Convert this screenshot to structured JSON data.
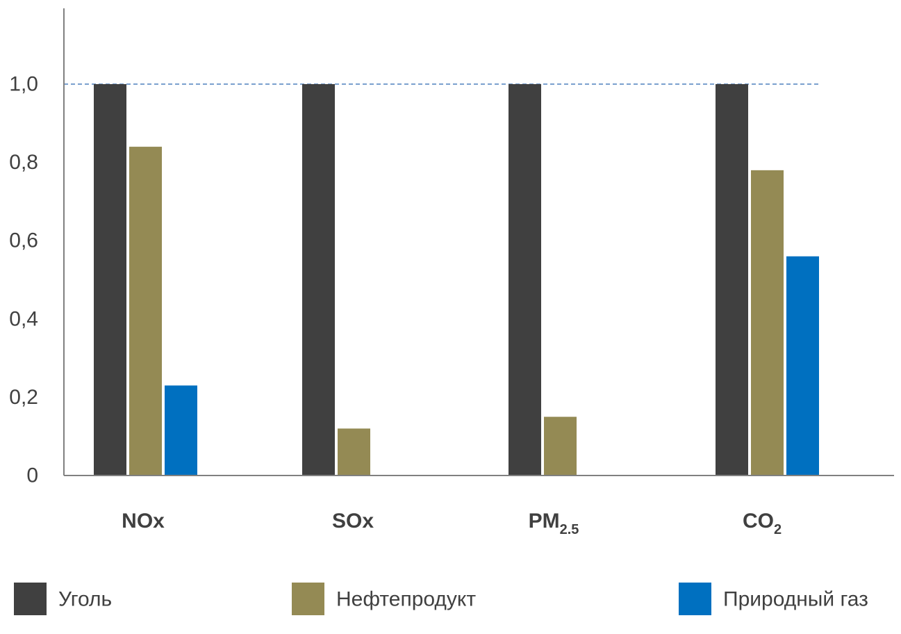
{
  "chart_data": {
    "type": "bar",
    "categories": [
      {
        "main": "NOx",
        "sub": ""
      },
      {
        "main": "SOx",
        "sub": ""
      },
      {
        "main": "PM",
        "sub": "2.5"
      },
      {
        "main": "CO",
        "sub": "2"
      }
    ],
    "series": [
      {
        "name": "Уголь",
        "color": "#404040",
        "values": [
          1.0,
          1.0,
          1.0,
          1.0
        ]
      },
      {
        "name": "Нефтепродукт",
        "color": "#948a54",
        "values": [
          0.84,
          0.12,
          0.15,
          0.78
        ]
      },
      {
        "name": "Природный газ",
        "color": "#0070c0",
        "values": [
          0.23,
          0.0,
          0.0,
          0.56
        ]
      }
    ],
    "y_ticks": [
      "0",
      "0,2",
      "0,4",
      "0,6",
      "0,8",
      "1,0"
    ],
    "y_tick_values": [
      0,
      0.2,
      0.4,
      0.6,
      0.8,
      1.0
    ],
    "ylim": [
      0,
      1.2
    ],
    "reference_line": 1.0,
    "reference_line_color": "#4f81bd",
    "title": "",
    "xlabel": "",
    "ylabel": "",
    "grid": false,
    "legend_position": "bottom"
  }
}
